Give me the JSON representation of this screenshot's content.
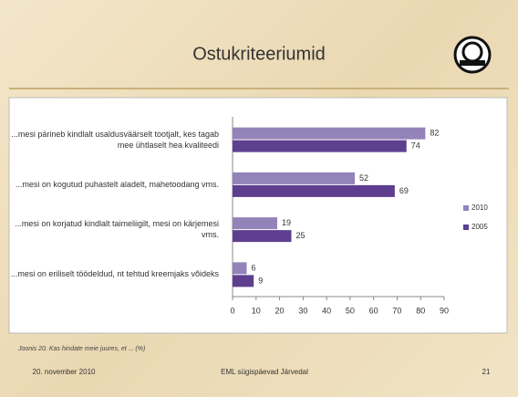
{
  "header": {
    "title": "Ostukriteeriumid"
  },
  "chart_data": {
    "type": "bar",
    "orientation": "horizontal",
    "categories": [
      "...mesi pärineb kindlalt usaldusväärselt tootjalt, kes tagab mee ühtlaselt hea kvaliteedi",
      "...mesi on kogutud puhastelt aladelt, mahetoodang vms.",
      "...mesi on korjatud kindlalt taimeliigilt, mesi on kärjemesi vms.",
      "...mesi on eriliselt töödeldud, nt tehtud kreemjaks võideks"
    ],
    "series": [
      {
        "name": "2010",
        "color": "#9483b8",
        "values": [
          82,
          52,
          19,
          6
        ]
      },
      {
        "name": "2005",
        "color": "#5e3f8f",
        "values": [
          74,
          69,
          25,
          9
        ]
      }
    ],
    "xlim": [
      0,
      90
    ],
    "xticks": [
      0,
      10,
      20,
      30,
      40,
      50,
      60,
      70,
      80,
      90
    ],
    "legend": "right"
  },
  "footer": {
    "caption": "Joonis 20. Kas hindate meie juures, et ... (%)",
    "date": "20. november 2010",
    "event": "EML sügispäevad Järvedal",
    "page": "21"
  }
}
